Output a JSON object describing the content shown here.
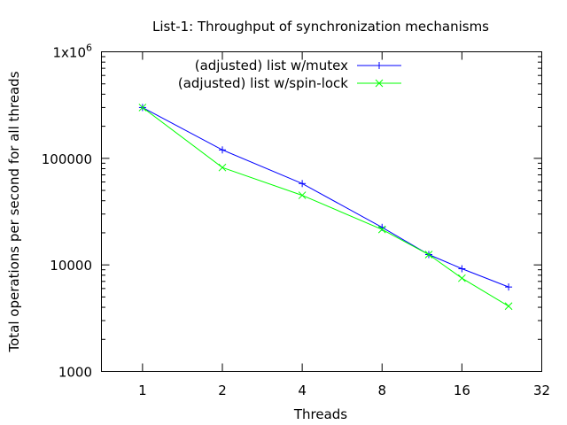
{
  "chart_data": {
    "type": "line",
    "title": "List-1: Throughput of synchronization mechanisms",
    "xlabel": "Threads",
    "ylabel": "Total operations per second for all threads",
    "x_scale": "log2",
    "y_scale": "log10",
    "xlim": [
      0.7,
      32
    ],
    "ylim": [
      1000,
      1000000
    ],
    "x_ticks": [
      {
        "value": 1,
        "label": "1"
      },
      {
        "value": 2,
        "label": "2"
      },
      {
        "value": 4,
        "label": "4"
      },
      {
        "value": 8,
        "label": "8"
      },
      {
        "value": 16,
        "label": "16"
      },
      {
        "value": 32,
        "label": "32"
      }
    ],
    "y_ticks": [
      {
        "value": 1000,
        "label": "1000"
      },
      {
        "value": 10000,
        "label": "10000"
      },
      {
        "value": 100000,
        "label": "100000"
      },
      {
        "value": 1000000,
        "label": "1x10",
        "sup": "6"
      }
    ],
    "grid": false,
    "legend_position": "top-center",
    "series": [
      {
        "name": "(adjusted) list w/mutex",
        "color": "#0000ff",
        "marker": "plus",
        "x": [
          1,
          2,
          4,
          8,
          12,
          16,
          24
        ],
        "y": [
          300000,
          120000,
          58000,
          22500,
          12500,
          9200,
          6200
        ]
      },
      {
        "name": "(adjusted) list w/spin-lock",
        "color": "#00ff00",
        "marker": "cross",
        "x": [
          1,
          2,
          4,
          8,
          12,
          16,
          24
        ],
        "y": [
          300000,
          82000,
          45000,
          21500,
          12500,
          7500,
          4100
        ]
      }
    ]
  }
}
